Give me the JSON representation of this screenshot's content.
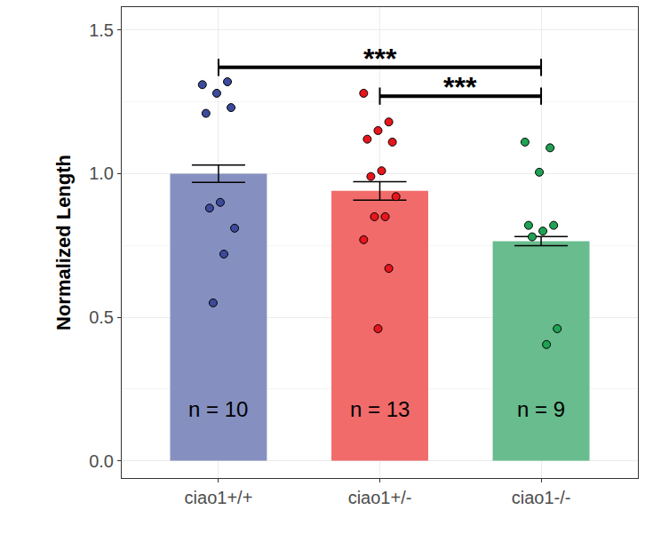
{
  "chart_data": {
    "type": "bar",
    "y_label": "Normalized Length",
    "categories": [
      "ciao1+/+",
      "ciao1+/-",
      "ciao1-/-"
    ],
    "values": [
      1.0,
      0.94,
      0.765
    ],
    "errors": [
      0.03,
      0.032,
      0.016
    ],
    "colors": [
      "#8690c0",
      "#f26b6b",
      "#68bc8e"
    ],
    "points": [
      [
        1.31,
        1.32,
        1.28,
        1.21,
        1.23,
        0.9,
        0.88,
        0.81,
        0.72,
        0.55
      ],
      [
        1.28,
        1.18,
        1.15,
        1.12,
        1.11,
        1.01,
        0.99,
        0.92,
        0.85,
        0.85,
        0.77,
        0.67,
        0.46
      ],
      [
        1.11,
        1.09,
        1.005,
        0.82,
        0.82,
        0.8,
        0.78,
        0.46,
        0.405
      ]
    ],
    "point_colors": [
      "#3c4a9b",
      "#e8151c",
      "#1fa254"
    ],
    "n_labels": [
      "n = 10",
      "n = 13",
      "n = 9"
    ],
    "n_label_y": 0.18,
    "significance": [
      {
        "from": 0,
        "to": 2,
        "y": 1.37,
        "label": "***"
      },
      {
        "from": 1,
        "to": 2,
        "y": 1.27,
        "label": "***"
      }
    ],
    "ylim": [
      -0.06,
      1.58
    ],
    "yticks": [
      {
        "value": 0,
        "label": "0.0"
      },
      0.5,
      {
        "value": 1,
        "label": "1.0"
      },
      1.5
    ],
    "grid": true
  }
}
